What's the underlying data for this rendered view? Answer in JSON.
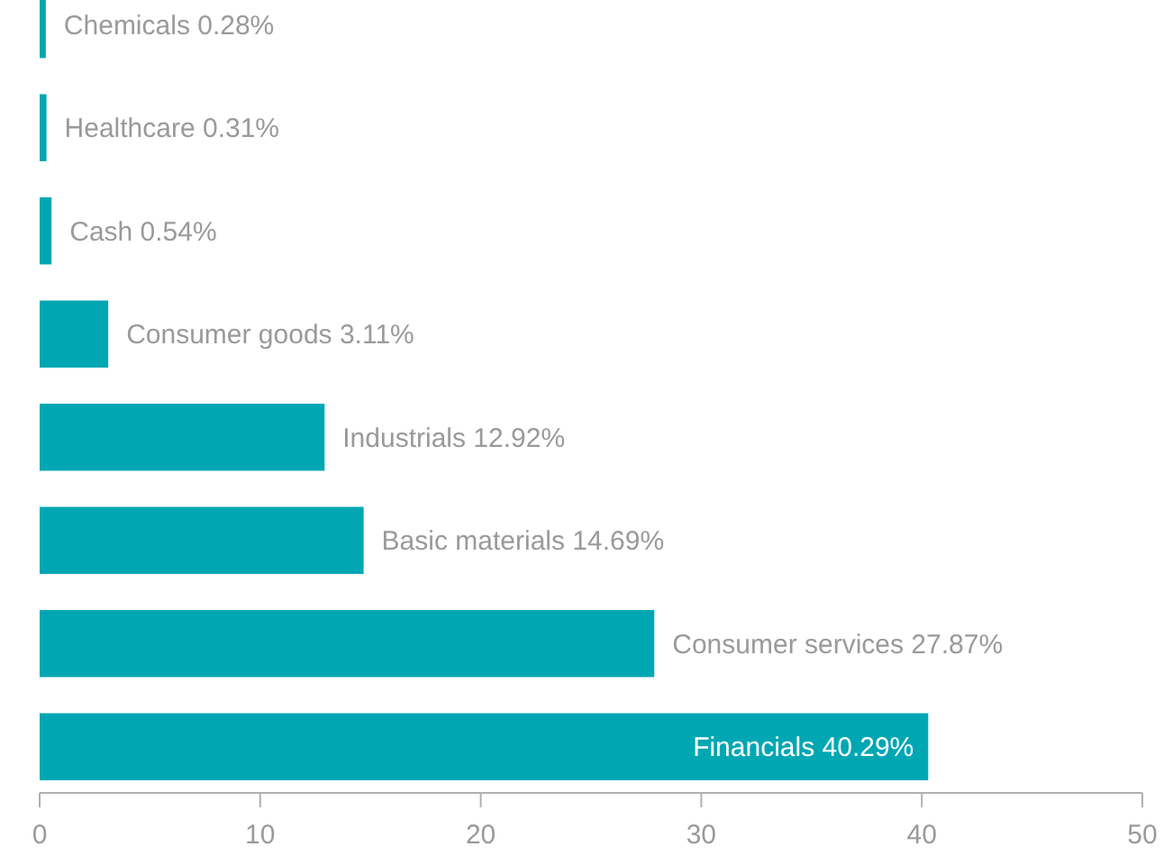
{
  "chart_data": {
    "type": "bar",
    "orientation": "horizontal",
    "categories": [
      "Chemicals",
      "Healthcare",
      "Cash",
      "Consumer goods",
      "Industrials",
      "Basic materials",
      "Consumer services",
      "Financials"
    ],
    "values": [
      0.28,
      0.31,
      0.54,
      3.11,
      12.92,
      14.69,
      27.87,
      40.29
    ],
    "value_labels": [
      "0.28%",
      "0.31%",
      "0.54%",
      "3.11%",
      "12.92%",
      "14.69%",
      "27.87%",
      "40.29%"
    ],
    "color": "#00a7b3",
    "xlim": [
      0,
      50
    ],
    "xticks": [
      0,
      10,
      20,
      30,
      40,
      50
    ],
    "grid": false
  }
}
